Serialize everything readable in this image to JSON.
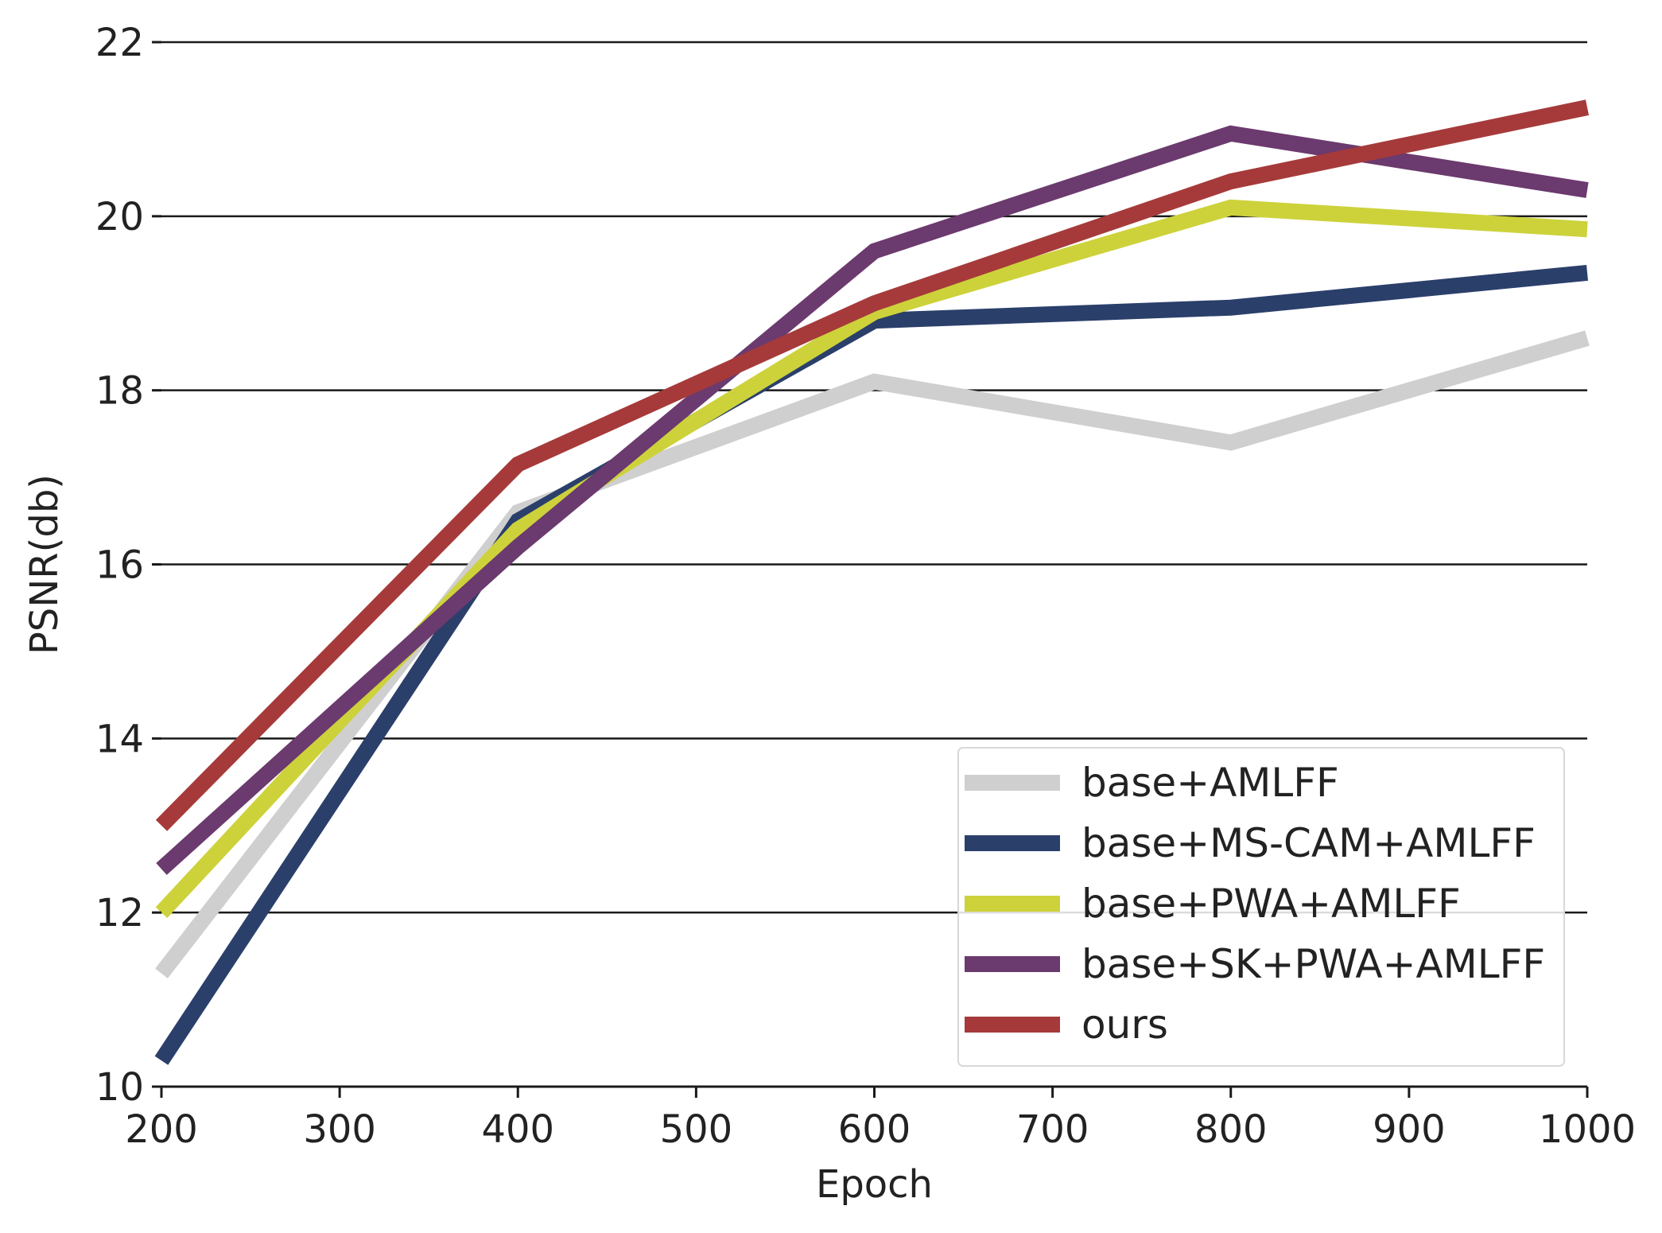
{
  "chart_data": {
    "type": "line",
    "title": "",
    "xlabel": "Epoch",
    "ylabel": "PSNR(db)",
    "x": [
      200,
      400,
      600,
      800,
      1000
    ],
    "xlim": [
      200,
      1000
    ],
    "ylim": [
      10,
      22
    ],
    "xticks": [
      "200",
      "300",
      "400",
      "500",
      "600",
      "700",
      "800",
      "900",
      "1000"
    ],
    "yticks": [
      "10",
      "12",
      "14",
      "16",
      "18",
      "20",
      "22"
    ],
    "grid": "horizontal",
    "legend_position": "lower-right",
    "series": [
      {
        "name": "base+AMLFF",
        "color": "#cfcfcf",
        "values": [
          11.3,
          16.6,
          18.1,
          17.4,
          18.6
        ]
      },
      {
        "name": "base+MS-CAM+AMLFF",
        "color": "#2b3f6b",
        "values": [
          10.3,
          16.5,
          18.8,
          18.95,
          19.35
        ]
      },
      {
        "name": "base+PWA+AMLFF",
        "color": "#cdd23b",
        "values": [
          12.0,
          16.4,
          18.9,
          20.1,
          19.85
        ]
      },
      {
        "name": "base+SK+PWA+AMLFF",
        "color": "#6b3a6e",
        "values": [
          12.5,
          16.2,
          19.6,
          20.95,
          20.3
        ]
      },
      {
        "name": "ours",
        "color": "#a63a3a",
        "values": [
          13.0,
          17.15,
          19.0,
          20.4,
          21.25
        ]
      }
    ]
  }
}
